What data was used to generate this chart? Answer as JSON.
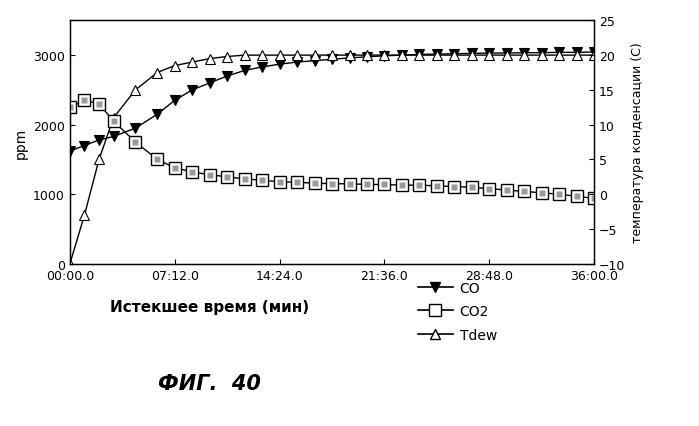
{
  "xlabel": "Истекшее время (мин)",
  "ylabel_left": "ppm",
  "ylabel_right": "температура конденсации (С)",
  "fig_label": "ФИГ.  40",
  "xlim": [
    0,
    2160
  ],
  "ylim_left": [
    0,
    3500
  ],
  "ylim_right": [
    -10,
    25
  ],
  "xtick_positions": [
    0,
    432,
    864,
    1296,
    1728,
    2160
  ],
  "xtick_labels": [
    "00:00.0",
    "07:12.0",
    "14:24.0",
    "21:36.0",
    "28:48.0",
    "36:00.0"
  ],
  "ytick_left": [
    0,
    1000,
    2000,
    3000
  ],
  "ytick_right": [
    -10,
    -5,
    0,
    5,
    10,
    15,
    20,
    25
  ],
  "CO_x": [
    0,
    60,
    120,
    180,
    270,
    360,
    432,
    504,
    576,
    648,
    720,
    792,
    864,
    936,
    1008,
    1080,
    1152,
    1224,
    1296,
    1368,
    1440,
    1512,
    1584,
    1656,
    1728,
    1800,
    1872,
    1944,
    2016,
    2088,
    2160
  ],
  "CO_y": [
    1620,
    1700,
    1780,
    1830,
    1950,
    2150,
    2350,
    2500,
    2600,
    2700,
    2780,
    2830,
    2870,
    2900,
    2920,
    2940,
    2960,
    2975,
    2990,
    3000,
    3010,
    3015,
    3020,
    3025,
    3030,
    3030,
    3035,
    3035,
    3040,
    3040,
    3045
  ],
  "CO2_x": [
    0,
    60,
    120,
    180,
    270,
    360,
    432,
    504,
    576,
    648,
    720,
    792,
    864,
    936,
    1008,
    1080,
    1152,
    1224,
    1296,
    1368,
    1440,
    1512,
    1584,
    1656,
    1728,
    1800,
    1872,
    1944,
    2016,
    2088,
    2160
  ],
  "CO2_y": [
    2250,
    2350,
    2300,
    2050,
    1750,
    1500,
    1380,
    1320,
    1280,
    1250,
    1220,
    1200,
    1180,
    1170,
    1160,
    1150,
    1150,
    1140,
    1140,
    1130,
    1130,
    1120,
    1110,
    1100,
    1080,
    1060,
    1040,
    1020,
    1000,
    970,
    940
  ],
  "Tdew_x": [
    0,
    60,
    120,
    180,
    270,
    360,
    432,
    504,
    576,
    648,
    720,
    792,
    864,
    936,
    1008,
    1080,
    1152,
    1224,
    1296,
    1368,
    1440,
    1512,
    1584,
    1656,
    1728,
    1800,
    1872,
    1944,
    2016,
    2088,
    2160
  ],
  "Tdew_y_degC": [
    -10,
    -3,
    5,
    11,
    15,
    17.5,
    18.5,
    19.0,
    19.5,
    19.8,
    20,
    20,
    20,
    20,
    20,
    20,
    20,
    20,
    20,
    20,
    20,
    20,
    20,
    20,
    20,
    20,
    20,
    20,
    20,
    20,
    20
  ],
  "background_color": "#ffffff"
}
